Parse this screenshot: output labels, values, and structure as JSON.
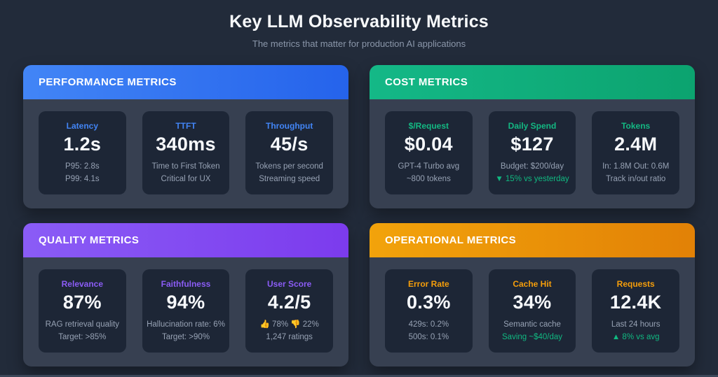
{
  "header": {
    "title": "Key LLM Observability Metrics",
    "subtitle": "The metrics that matter for production AI applications"
  },
  "colors": {
    "background": "#222b3a",
    "card_body": "#374051",
    "tile_background": "#1d2636",
    "subtext": "#97a2b4",
    "trend_green": "#10b981"
  },
  "cards": [
    {
      "id": "performance",
      "title": "PERFORMANCE METRICS",
      "accent": "#4285f6",
      "gradient": [
        "#4285f6",
        "#2563eb"
      ],
      "tiles": [
        {
          "label": "Latency",
          "value": "1.2s",
          "line1": "P95: 2.8s",
          "line2": "P99: 4.1s"
        },
        {
          "label": "TTFT",
          "value": "340ms",
          "line1": "Time to First Token",
          "line2": "Critical for UX"
        },
        {
          "label": "Throughput",
          "value": "45/s",
          "line1": "Tokens per second",
          "line2": "Streaming speed"
        }
      ]
    },
    {
      "id": "cost",
      "title": "COST METRICS",
      "accent": "#13b983",
      "gradient": [
        "#14b887",
        "#0ca36f"
      ],
      "tiles": [
        {
          "label": "$/Request",
          "value": "$0.04",
          "line1": "GPT-4 Turbo avg",
          "line2": "~800 tokens"
        },
        {
          "label": "Daily Spend",
          "value": "$127",
          "line1": "Budget: $200/day",
          "line2": "▼ 15% vs yesterday",
          "line2_color": "#10b981"
        },
        {
          "label": "Tokens",
          "value": "2.4M",
          "line1": "In: 1.8M Out: 0.6M",
          "line2": "Track in/out ratio"
        }
      ]
    },
    {
      "id": "quality",
      "title": "QUALITY METRICS",
      "accent": "#8b5cf6",
      "gradient": [
        "#8a5cf6",
        "#7c3bed"
      ],
      "tiles": [
        {
          "label": "Relevance",
          "value": "87%",
          "line1": "RAG retrieval quality",
          "line2": "Target: >85%"
        },
        {
          "label": "Faithfulness",
          "value": "94%",
          "line1": "Hallucination rate: 6%",
          "line2": "Target: >90%"
        },
        {
          "label": "User Score",
          "value": "4.2/5",
          "line1": "👍 78% 👎 22%",
          "line2": "1,247 ratings"
        }
      ]
    },
    {
      "id": "operational",
      "title": "OPERATIONAL METRICS",
      "accent": "#f59e0b",
      "gradient": [
        "#f2a30b",
        "#e28106"
      ],
      "tiles": [
        {
          "label": "Error Rate",
          "value": "0.3%",
          "line1": "429s: 0.2%",
          "line2": "500s: 0.1%"
        },
        {
          "label": "Cache Hit",
          "value": "34%",
          "line1": "Semantic cache",
          "line2": "Saving ~$40/day",
          "line2_color": "#10b981"
        },
        {
          "label": "Requests",
          "value": "12.4K",
          "line1": "Last 24 hours",
          "line2": "▲ 8% vs avg",
          "line2_color": "#10b981"
        }
      ]
    }
  ]
}
